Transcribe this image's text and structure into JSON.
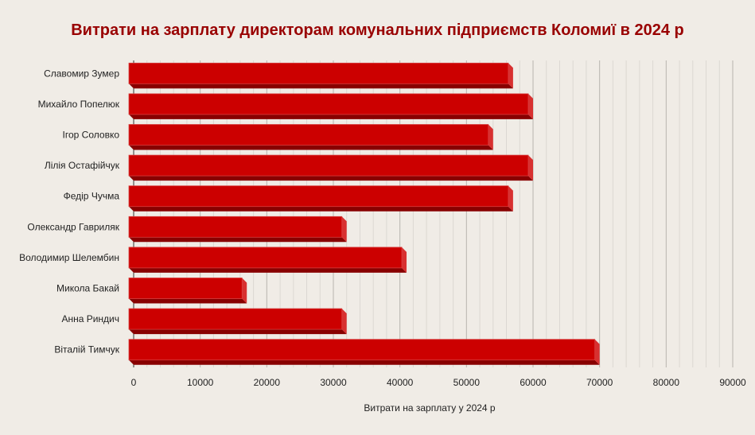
{
  "chart_data": {
    "type": "bar",
    "orientation": "horizontal",
    "title": "Витрати на зарплату директорам комунальних підприємств Коломиї в 2024 р",
    "xlabel": "Витрати на зарплату  у 2024 р",
    "ylabel": "",
    "categories": [
      "Славомир Зумер",
      "Михайло Попелюк",
      "Ігор Соловко",
      "Лілія Остафійчук",
      "Федір Чучма",
      "Олександр Гавриляк",
      "Володимир Шелембин",
      "Микола Бакай",
      "Анна Риндич",
      "Віталій Тимчук"
    ],
    "values": [
      57000,
      60000,
      54000,
      60000,
      57000,
      32000,
      41000,
      17000,
      32000,
      70000
    ],
    "xlim": [
      0,
      90000
    ],
    "xticks": [
      "0",
      "10000",
      "20000",
      "30000",
      "40000",
      "50000",
      "60000",
      "70000",
      "80000",
      "90000"
    ],
    "grid": true,
    "colors": {
      "bar": "#cc0000",
      "bar_bottom": "#880000",
      "bar_side": "#d83030",
      "title": "#990000"
    }
  }
}
